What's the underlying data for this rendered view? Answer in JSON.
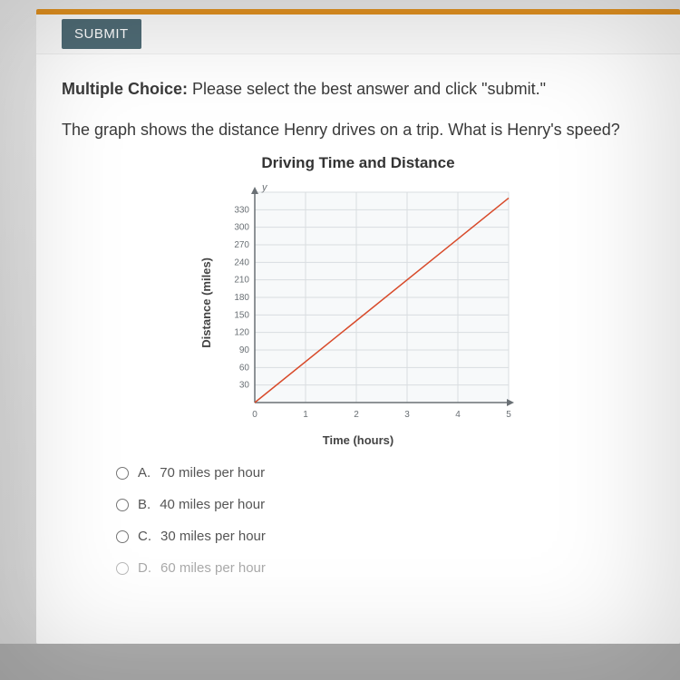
{
  "submit_label": "SUBMIT",
  "prompt_bold": "Multiple Choice:",
  "prompt_rest": " Please select the best answer and click \"submit.\"",
  "question": "The graph shows the distance Henry drives on a trip. What is Henry's speed?",
  "chart": {
    "title": "Driving Time and Distance",
    "xlabel": "Time (hours)",
    "ylabel": "Distance (miles)",
    "y_axis_letter": "y",
    "xlim": [
      0,
      5
    ],
    "ylim": [
      0,
      360
    ],
    "xticks": [
      0,
      1,
      2,
      3,
      4,
      5
    ],
    "yticks": [
      30,
      60,
      90,
      120,
      150,
      180,
      210,
      240,
      270,
      300,
      330
    ],
    "line": {
      "x1": 0,
      "y1": 0,
      "x2": 5,
      "y2": 350
    },
    "plot_bg": "#f7f9fa",
    "grid_color": "#d9dde0",
    "axis_color": "#6a7075",
    "line_color": "#d84a2a",
    "tick_font_size": 10,
    "tick_color": "#6a7075"
  },
  "options": [
    {
      "letter": "A.",
      "text": "70 miles per hour"
    },
    {
      "letter": "B.",
      "text": "40 miles per hour"
    },
    {
      "letter": "C.",
      "text": "30 miles per hour"
    },
    {
      "letter": "D.",
      "text": "60 miles per hour"
    }
  ]
}
